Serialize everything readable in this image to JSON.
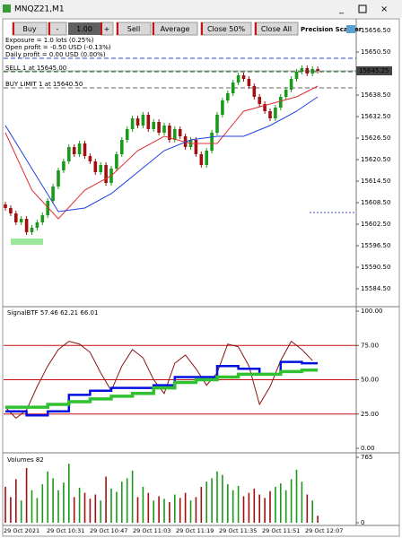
{
  "window": {
    "title": "MNQZ21,M1"
  },
  "toolbar": {
    "buttons": [
      "Buy",
      "-",
      "+",
      "Sell",
      "Average",
      "Close 50%",
      "Close All"
    ],
    "lots": "1.00"
  },
  "info": [
    "Exposure = 1.0 lots (0.25%)",
    "Open profit = -0.50 USD (-0.13%)",
    "Daily profit = 0.00 USD (0.00%)"
  ],
  "brand": "Precision Scalper",
  "orders": [
    {
      "label": "SELL 1 at 15645.00",
      "price": 15645.0
    },
    {
      "label": "BUY LIMIT 1 at 15640.50",
      "price": 15640.5
    }
  ],
  "price_chart": {
    "open": 15608,
    "closes": [
      15607,
      15605.5,
      15603,
      15604,
      15600.25,
      15601.5,
      15603,
      15605,
      15609,
      15613,
      15617.5,
      15620,
      15624,
      15622,
      15625,
      15621.5,
      15620,
      15617,
      15619,
      15614,
      15618,
      15622,
      15626,
      15629,
      15632,
      15630,
      15633,
      15629,
      15631,
      15628,
      15630,
      15626,
      15629,
      15627,
      15624,
      15626,
      15622,
      15619,
      15623,
      15628,
      15633,
      15637,
      15639,
      15642,
      15644,
      15643,
      15641,
      15638,
      15636,
      15634,
      15632,
      15635,
      15638,
      15640,
      15643,
      15645,
      15646,
      15644.5,
      15645.75,
      15645.25
    ],
    "up_color": "#1a9a1a",
    "down_color": "#a01010",
    "ylim": [
      15579.5,
      15659.5
    ],
    "yticks": [
      {
        "value": 15656.5,
        "label": "15656.50"
      },
      {
        "value": 15650.5,
        "label": "15650.50"
      },
      {
        "value": 15638.5,
        "label": "15638.50"
      },
      {
        "value": 15632.5,
        "label": "15632.50"
      },
      {
        "value": 15626.5,
        "label": "15626.50"
      },
      {
        "value": 15620.5,
        "label": "15620.50"
      },
      {
        "value": 15614.5,
        "label": "15614.50"
      },
      {
        "value": 15608.5,
        "label": "15608.50"
      },
      {
        "value": 15602.5,
        "label": "15602.50"
      },
      {
        "value": 15596.5,
        "label": "15596.50"
      },
      {
        "value": 15590.5,
        "label": "15590.50"
      },
      {
        "value": 15584.5,
        "label": "15584.50"
      }
    ],
    "last_price": 15645.25,
    "ma": [
      {
        "color": "#e03030",
        "x": [
          0,
          5,
          10,
          15,
          20,
          25,
          30,
          35,
          40,
          45,
          50,
          55,
          59
        ],
        "values": [
          15628,
          15612,
          15604,
          15612,
          15616,
          15623,
          15627,
          15625,
          15625,
          15634,
          15636,
          15638,
          15641
        ]
      },
      {
        "color": "#2040e0",
        "x": [
          0,
          5,
          10,
          15,
          20,
          25,
          30,
          35,
          40,
          45,
          50,
          55,
          59
        ],
        "values": [
          15630,
          15618,
          15606,
          15607,
          15611,
          15617,
          15623,
          15626,
          15627,
          15627,
          15630,
          15634,
          15638
        ]
      }
    ]
  },
  "time_labels": [
    "29 Oct 2021",
    "29 Oct 10:31",
    "29 Oct 10:47",
    "29 Oct 11:03",
    "29 Oct 11:19",
    "29 Oct 11:35",
    "29 Oct 11:51",
    "29 Oct 12:07"
  ],
  "indicator": {
    "title": "SignalBTF 57.46 62.21 66.01",
    "ylim": [
      0,
      100
    ],
    "yticks": [
      {
        "value": 100,
        "label": "100.00"
      },
      {
        "value": 75,
        "label": "75.00"
      },
      {
        "value": 50,
        "label": "50.00"
      },
      {
        "value": 25,
        "label": "25.00"
      },
      {
        "value": 0,
        "label": "0.00"
      }
    ],
    "levels": [
      75,
      50,
      25
    ],
    "series": [
      {
        "color": "#8b1010",
        "step": 2,
        "values": [
          30,
          22,
          28,
          45,
          60,
          72,
          78,
          76,
          70,
          55,
          42,
          60,
          72,
          66,
          50,
          40,
          62,
          68,
          58,
          46,
          55,
          76,
          74,
          60,
          32,
          45,
          64,
          78,
          72,
          64
        ]
      },
      {
        "color": "#0010e0",
        "step": 4,
        "values": [
          27,
          24,
          27,
          39,
          42,
          44,
          44,
          46,
          52,
          52,
          60,
          58,
          54,
          63,
          62
        ]
      },
      {
        "color": "#30c030",
        "step": 4,
        "values": [
          30,
          30,
          32,
          34,
          36,
          38,
          40,
          44,
          48,
          50,
          52,
          54,
          54,
          56,
          57
        ]
      }
    ]
  },
  "volumes": {
    "title": "Volumes 82",
    "ylim": [
      0,
      765
    ],
    "yticks": [
      765,
      0
    ],
    "values": [
      420,
      300,
      510,
      260,
      640,
      380,
      290,
      450,
      600,
      520,
      380,
      470,
      690,
      300,
      410,
      350,
      280,
      330,
      260,
      540,
      400,
      360,
      480,
      520,
      610,
      300,
      420,
      350,
      260,
      310,
      280,
      240,
      330,
      290,
      350,
      260,
      300,
      420,
      480,
      520,
      600,
      560,
      450,
      380,
      430,
      310,
      350,
      400,
      330,
      290,
      370,
      420,
      460,
      380,
      510,
      620,
      480,
      330,
      260,
      82
    ]
  }
}
